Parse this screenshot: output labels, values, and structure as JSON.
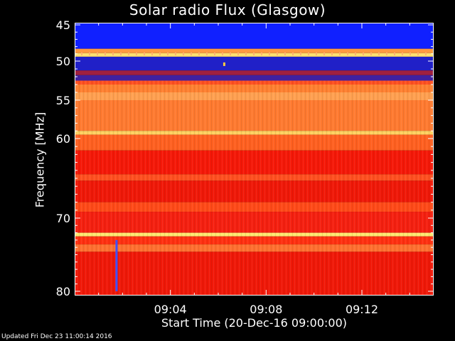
{
  "chart_data": {
    "type": "heatmap",
    "title": "Solar radio Flux (Glasgow)",
    "ylabel": "Frequency [MHz]",
    "xlabel": "Start Time (20-Dec-16 09:00:00)",
    "y_ticks": [
      45,
      50,
      55,
      60,
      70,
      80
    ],
    "y_tick_labels": [
      "45",
      "50",
      "55",
      "60",
      "70",
      "80"
    ],
    "x_ticks": [
      "09:04",
      "09:08",
      "09:12"
    ],
    "x_tick_minutes": [
      4,
      8,
      12
    ],
    "xlim_minutes": [
      0,
      15
    ],
    "ylim": [
      45,
      80
    ],
    "bands": [
      {
        "from": 45.0,
        "to": 48.3,
        "color": "#1020ff"
      },
      {
        "from": 48.3,
        "to": 48.9,
        "color": "#ff9a40"
      },
      {
        "from": 48.9,
        "to": 49.4,
        "color": "#ffe070"
      },
      {
        "from": 49.4,
        "to": 51.2,
        "color": "#2020c8"
      },
      {
        "from": 51.2,
        "to": 51.8,
        "color": "#a02040"
      },
      {
        "from": 51.8,
        "to": 52.5,
        "color": "#4020a0"
      },
      {
        "from": 52.5,
        "to": 53.0,
        "color": "#ff5020"
      },
      {
        "from": 53.0,
        "to": 54.0,
        "color": "#ff8030"
      },
      {
        "from": 54.0,
        "to": 55.0,
        "color": "#ffa050"
      },
      {
        "from": 55.0,
        "to": 59.0,
        "color": "#ff7a30"
      },
      {
        "from": 59.0,
        "to": 59.5,
        "color": "#ffd060"
      },
      {
        "from": 59.5,
        "to": 61.5,
        "color": "#ff6020"
      },
      {
        "from": 61.5,
        "to": 64.5,
        "color": "#f51808"
      },
      {
        "from": 64.5,
        "to": 65.3,
        "color": "#ff5020"
      },
      {
        "from": 65.3,
        "to": 68.0,
        "color": "#f01808"
      },
      {
        "from": 68.0,
        "to": 69.2,
        "color": "#ff4a18"
      },
      {
        "from": 69.2,
        "to": 72.0,
        "color": "#f52010"
      },
      {
        "from": 72.0,
        "to": 72.5,
        "color": "#ffe870"
      },
      {
        "from": 72.5,
        "to": 73.6,
        "color": "#ff3010"
      },
      {
        "from": 73.6,
        "to": 74.6,
        "color": "#ff7030"
      },
      {
        "from": 74.6,
        "to": 80.0,
        "color": "#f01808"
      }
    ],
    "markers": [
      {
        "minute": 6.25,
        "freq": 50.4,
        "color": "#ffcc40"
      }
    ],
    "vertical_artifacts": [
      {
        "minute": 1.75,
        "from": 73.0,
        "to": 80.0,
        "color": "#4050ff"
      }
    ]
  },
  "footer": {
    "updated": "Updated Fri Dec 23 11:00:14 2016"
  }
}
